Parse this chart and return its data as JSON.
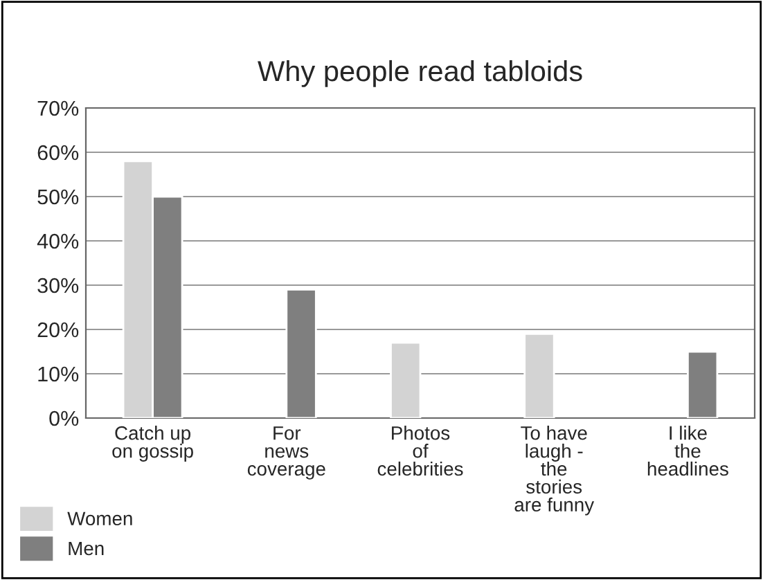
{
  "chart_data": {
    "type": "bar",
    "title": "Why people read tabloids",
    "categories": [
      "Catch up\non gossip",
      "For\nnews\ncoverage",
      "Photos\nof\ncelebrities",
      "To have\nlaugh -\nthe\nstories\nare funny",
      "I like\nthe\nheadlines"
    ],
    "series": [
      {
        "name": "Women",
        "color": "#d3d3d3",
        "values": [
          58,
          null,
          17,
          19,
          null
        ]
      },
      {
        "name": "Men",
        "color": "#7f7f7f",
        "values": [
          50,
          29,
          null,
          null,
          15
        ]
      }
    ],
    "ylim": [
      0,
      70
    ],
    "yticks": [
      {
        "value": 0,
        "label": "0%"
      },
      {
        "value": 10,
        "label": "10%"
      },
      {
        "value": 20,
        "label": "20%"
      },
      {
        "value": 30,
        "label": "30%"
      },
      {
        "value": 40,
        "label": "40%"
      },
      {
        "value": 50,
        "label": "50%"
      },
      {
        "value": 60,
        "label": "60%"
      },
      {
        "value": 70,
        "label": "70%"
      }
    ],
    "grid": "y",
    "legend": "bottom left"
  }
}
